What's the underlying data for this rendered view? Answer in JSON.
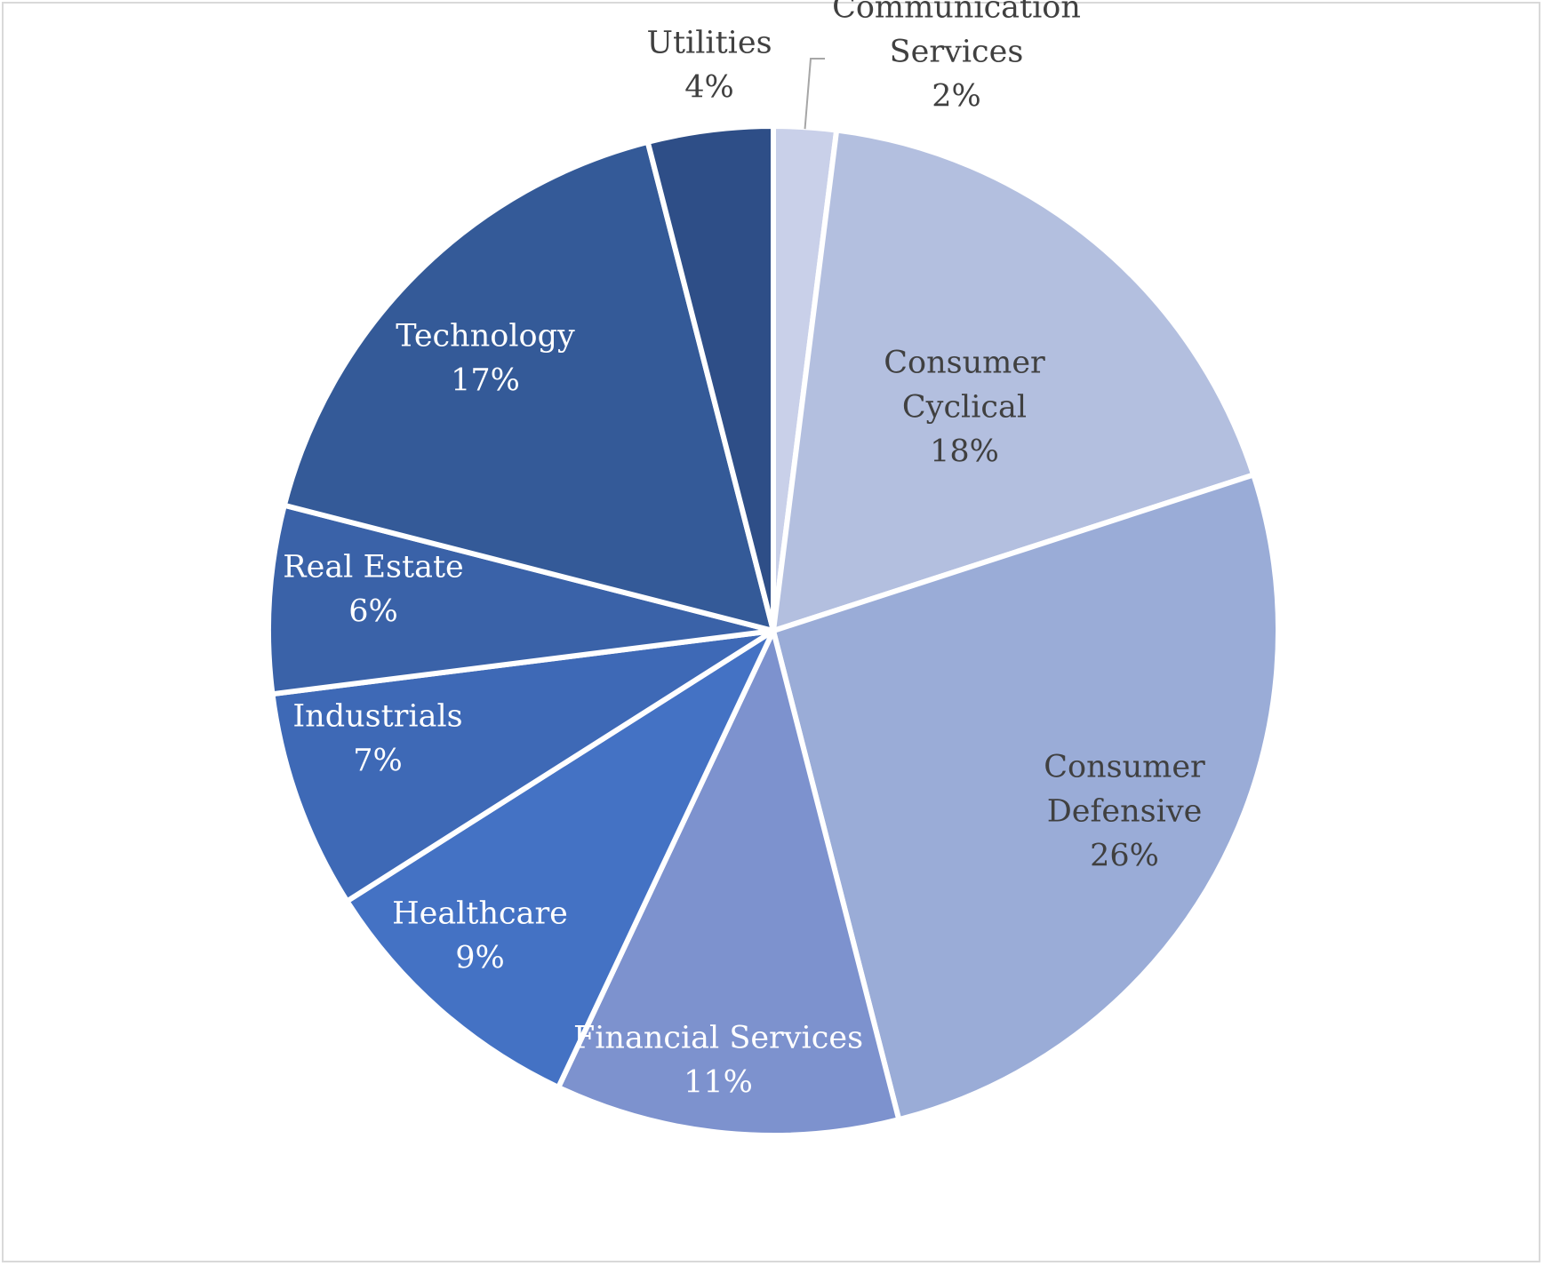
{
  "chart_data": {
    "type": "pie",
    "title": "",
    "start_angle_deg": 0,
    "direction": "clockwise",
    "slices": [
      {
        "name": "Communication Services",
        "label_lines": [
          "Communication",
          "Services"
        ],
        "value": 2,
        "value_label": "2%",
        "color": "#C9D0E9",
        "text_color": "#404040"
      },
      {
        "name": "Consumer Cyclical",
        "label_lines": [
          "Consumer",
          "Cyclical"
        ],
        "value": 18,
        "value_label": "18%",
        "color": "#B3BFDF",
        "text_color": "#404040"
      },
      {
        "name": "Consumer Defensive",
        "label_lines": [
          "Consumer",
          "Defensive"
        ],
        "value": 26,
        "value_label": "26%",
        "color": "#9AACD7",
        "text_color": "#404040"
      },
      {
        "name": "Financial Services",
        "label_lines": [
          "Financial Services"
        ],
        "value": 11,
        "value_label": "11%",
        "color": "#7D92CE",
        "text_color": "#ffffff"
      },
      {
        "name": "Healthcare",
        "label_lines": [
          "Healthcare"
        ],
        "value": 9,
        "value_label": "9%",
        "color": "#4472C4",
        "text_color": "#ffffff"
      },
      {
        "name": "Industrials",
        "label_lines": [
          "Industrials"
        ],
        "value": 7,
        "value_label": "7%",
        "color": "#3E69B6",
        "text_color": "#ffffff"
      },
      {
        "name": "Real Estate",
        "label_lines": [
          "Real Estate"
        ],
        "value": 6,
        "value_label": "6%",
        "color": "#3A62A8",
        "text_color": "#ffffff"
      },
      {
        "name": "Technology",
        "label_lines": [
          "Technology"
        ],
        "value": 17,
        "value_label": "17%",
        "color": "#345A98",
        "text_color": "#ffffff"
      },
      {
        "name": "Utilities",
        "label_lines": [
          "Utilities"
        ],
        "value": 4,
        "value_label": "4%",
        "color": "#2E4E87",
        "text_color": "#404040"
      }
    ]
  }
}
